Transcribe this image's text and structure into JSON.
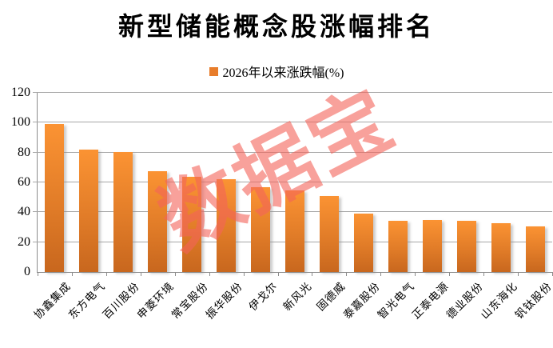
{
  "chart_data": {
    "type": "bar",
    "title": "新型储能概念股涨幅排名",
    "legend_label": "2026年以来涨跌幅(%)",
    "legend_position": "top-center",
    "categories": [
      "协鑫集成",
      "东方电气",
      "百川股份",
      "申菱环境",
      "常宝股份",
      "振华股份",
      "伊戈尔",
      "新风光",
      "固德威",
      "泰嘉股份",
      "智光电气",
      "正泰电源",
      "德业股份",
      "山东海化",
      "钒钛股份"
    ],
    "values": [
      99,
      82,
      80.5,
      67.5,
      63.5,
      62,
      57,
      54.5,
      51,
      39,
      34.5,
      35,
      34.5,
      32.7,
      30.3
    ],
    "xlabel": "",
    "ylabel": "",
    "ylim": [
      0,
      120
    ],
    "yticks": [
      0,
      20,
      40,
      60,
      80,
      100,
      120
    ],
    "grid": true
  },
  "watermark": {
    "text": "数据宝",
    "color": "#F4645A",
    "opacity": 0.6,
    "rotation_deg": -27
  },
  "colors": {
    "bar_top": "#FB9333",
    "bar_mid": "#E17C28",
    "bar_bottom": "#C8671E",
    "legend_swatch": "#E87D2B",
    "gridline": "#A6A6A6",
    "axis": "#8C8C8C",
    "text": "#000000"
  }
}
